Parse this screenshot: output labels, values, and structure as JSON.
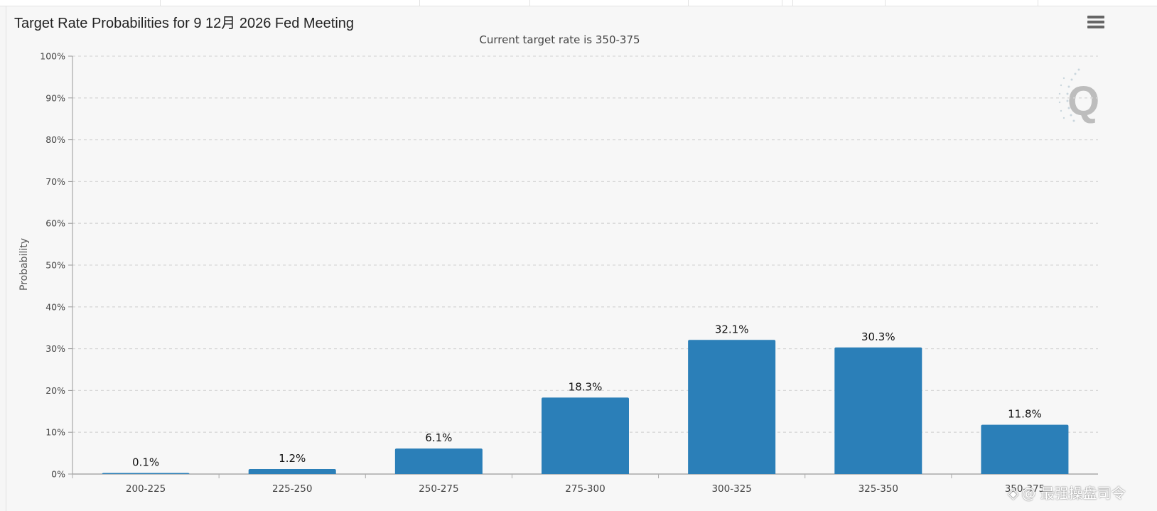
{
  "chart_data": {
    "type": "bar",
    "title": "Target Rate Probabilities for 9 12月 2026 Fed Meeting",
    "subtitle": "Current target rate is 350-375",
    "xlabel": "",
    "ylabel": "Probability",
    "ylim": [
      0,
      100
    ],
    "y_ticks": [
      "0%",
      "10%",
      "20%",
      "30%",
      "40%",
      "50%",
      "60%",
      "70%",
      "80%",
      "90%",
      "100%"
    ],
    "categories": [
      "200-225",
      "225-250",
      "250-275",
      "275-300",
      "300-325",
      "325-350",
      "350-375"
    ],
    "values": [
      0.1,
      1.2,
      6.1,
      18.3,
      32.1,
      30.3,
      11.8
    ],
    "data_labels": [
      "0.1%",
      "1.2%",
      "6.1%",
      "18.3%",
      "32.1%",
      "30.3%",
      "11.8%"
    ],
    "grid": true,
    "bar_color": "#2b7fb8"
  },
  "toolbar": {
    "menu_icon": "hamburger-menu-icon"
  },
  "watermark": {
    "text": "@ 最强操盘司令",
    "icon": "diamond-logo-icon"
  },
  "logo": {
    "text": "Q"
  }
}
